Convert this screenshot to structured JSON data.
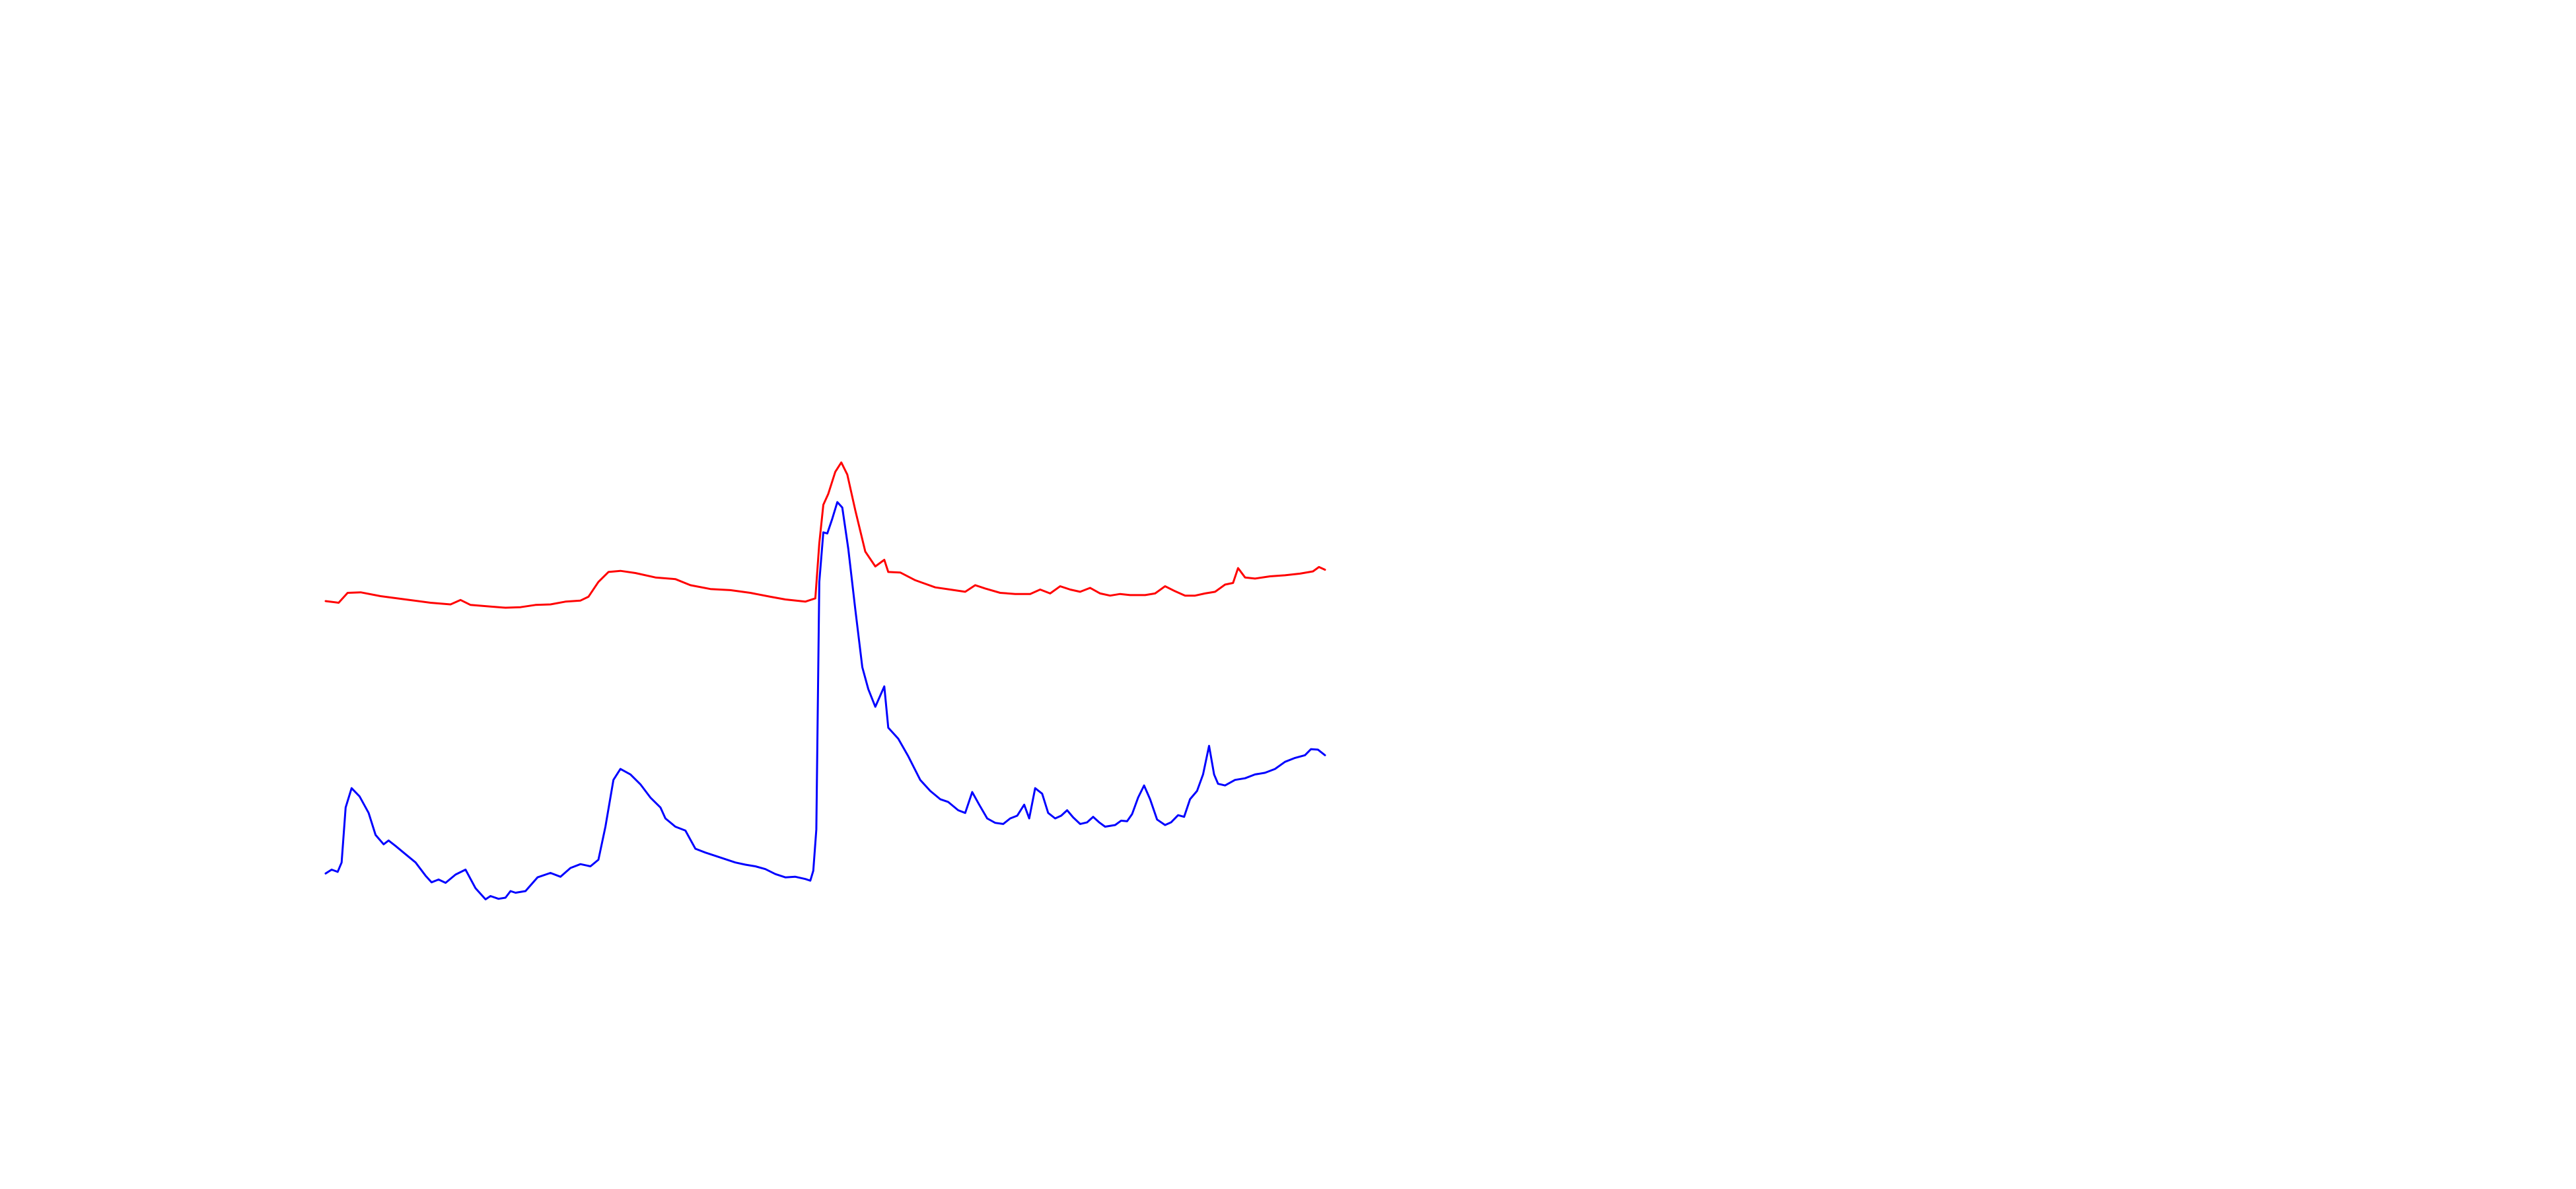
{
  "chart_data": {
    "type": "line",
    "title": "",
    "xlabel": "",
    "ylabel": "",
    "axes_visible": false,
    "grid": false,
    "legend": "none",
    "xlim": [
      0,
      100
    ],
    "ylim": [
      0,
      100
    ],
    "series": [
      {
        "color": "#ff0000",
        "points": [
          [
            0.0,
            54.5
          ],
          [
            1.3,
            54.2
          ],
          [
            2.2,
            56.0
          ],
          [
            3.5,
            56.1
          ],
          [
            5.5,
            55.4
          ],
          [
            8.0,
            54.8
          ],
          [
            10.5,
            54.2
          ],
          [
            12.5,
            53.9
          ],
          [
            13.5,
            54.7
          ],
          [
            14.5,
            53.8
          ],
          [
            16.5,
            53.5
          ],
          [
            18.0,
            53.3
          ],
          [
            19.5,
            53.4
          ],
          [
            21.0,
            53.8
          ],
          [
            22.5,
            53.9
          ],
          [
            24.0,
            54.4
          ],
          [
            25.5,
            54.6
          ],
          [
            26.3,
            55.3
          ],
          [
            27.3,
            58.0
          ],
          [
            28.3,
            59.8
          ],
          [
            29.5,
            60.0
          ],
          [
            31.0,
            59.6
          ],
          [
            33.0,
            58.8
          ],
          [
            35.0,
            58.5
          ],
          [
            36.5,
            57.4
          ],
          [
            38.5,
            56.7
          ],
          [
            40.5,
            56.5
          ],
          [
            42.5,
            56.0
          ],
          [
            44.5,
            55.3
          ],
          [
            46.0,
            54.8
          ],
          [
            48.0,
            54.4
          ],
          [
            49.0,
            55.0
          ],
          [
            49.4,
            65.0
          ],
          [
            49.8,
            72.0
          ],
          [
            50.3,
            74.0
          ],
          [
            51.0,
            78.0
          ],
          [
            51.6,
            79.7
          ],
          [
            52.2,
            77.5
          ],
          [
            53.0,
            71.0
          ],
          [
            54.0,
            63.5
          ],
          [
            55.0,
            60.8
          ],
          [
            55.9,
            62.0
          ],
          [
            56.3,
            59.8
          ],
          [
            57.5,
            59.7
          ],
          [
            59.0,
            58.3
          ],
          [
            61.0,
            57.0
          ],
          [
            62.5,
            56.6
          ],
          [
            64.0,
            56.2
          ],
          [
            65.0,
            57.4
          ],
          [
            66.0,
            56.8
          ],
          [
            67.5,
            56.0
          ],
          [
            69.0,
            55.8
          ],
          [
            70.5,
            55.8
          ],
          [
            71.5,
            56.6
          ],
          [
            72.5,
            55.9
          ],
          [
            73.5,
            57.2
          ],
          [
            74.5,
            56.6
          ],
          [
            75.5,
            56.2
          ],
          [
            76.5,
            56.9
          ],
          [
            77.5,
            55.9
          ],
          [
            78.5,
            55.5
          ],
          [
            79.5,
            55.8
          ],
          [
            80.5,
            55.6
          ],
          [
            82.0,
            55.6
          ],
          [
            83.0,
            55.9
          ],
          [
            84.0,
            57.2
          ],
          [
            85.0,
            56.3
          ],
          [
            86.0,
            55.5
          ],
          [
            87.0,
            55.5
          ],
          [
            88.0,
            55.9
          ],
          [
            89.0,
            56.2
          ],
          [
            90.0,
            57.5
          ],
          [
            90.8,
            57.8
          ],
          [
            91.3,
            60.5
          ],
          [
            92.0,
            58.8
          ],
          [
            93.0,
            58.6
          ],
          [
            94.5,
            59.0
          ],
          [
            96.0,
            59.2
          ],
          [
            97.5,
            59.5
          ],
          [
            98.8,
            59.9
          ],
          [
            99.4,
            60.7
          ],
          [
            100.0,
            60.2
          ]
        ]
      },
      {
        "color": "#0000ff",
        "points": [
          [
            0.0,
            5.0
          ],
          [
            0.6,
            5.7
          ],
          [
            1.2,
            5.3
          ],
          [
            1.6,
            7.0
          ],
          [
            2.0,
            17.0
          ],
          [
            2.6,
            20.5
          ],
          [
            3.4,
            19.0
          ],
          [
            4.3,
            16.0
          ],
          [
            5.0,
            12.0
          ],
          [
            5.8,
            10.3
          ],
          [
            6.3,
            11.0
          ],
          [
            7.0,
            10.0
          ],
          [
            8.0,
            8.5
          ],
          [
            9.0,
            7.0
          ],
          [
            10.0,
            4.6
          ],
          [
            10.6,
            3.4
          ],
          [
            11.3,
            3.9
          ],
          [
            12.0,
            3.3
          ],
          [
            13.0,
            4.8
          ],
          [
            14.0,
            5.7
          ],
          [
            15.0,
            2.3
          ],
          [
            16.0,
            0.3
          ],
          [
            16.5,
            0.9
          ],
          [
            17.3,
            0.4
          ],
          [
            18.0,
            0.6
          ],
          [
            18.5,
            1.8
          ],
          [
            19.0,
            1.5
          ],
          [
            20.0,
            1.8
          ],
          [
            21.2,
            4.3
          ],
          [
            22.5,
            5.1
          ],
          [
            23.5,
            4.4
          ],
          [
            24.5,
            6.0
          ],
          [
            25.5,
            6.7
          ],
          [
            26.5,
            6.3
          ],
          [
            27.3,
            7.5
          ],
          [
            28.0,
            13.5
          ],
          [
            28.8,
            22.0
          ],
          [
            29.5,
            24.0
          ],
          [
            30.5,
            23.0
          ],
          [
            31.5,
            21.2
          ],
          [
            32.5,
            18.8
          ],
          [
            33.5,
            17.0
          ],
          [
            34.0,
            15.0
          ],
          [
            35.0,
            13.5
          ],
          [
            36.0,
            12.8
          ],
          [
            37.0,
            9.5
          ],
          [
            38.0,
            8.8
          ],
          [
            39.0,
            8.2
          ],
          [
            40.0,
            7.6
          ],
          [
            41.0,
            7.0
          ],
          [
            42.0,
            6.6
          ],
          [
            43.0,
            6.3
          ],
          [
            44.0,
            5.8
          ],
          [
            45.0,
            4.9
          ],
          [
            46.0,
            4.3
          ],
          [
            47.0,
            4.4
          ],
          [
            48.0,
            4.0
          ],
          [
            48.5,
            3.7
          ],
          [
            48.8,
            5.5
          ],
          [
            49.1,
            13.0
          ],
          [
            49.4,
            58.0
          ],
          [
            49.8,
            67.0
          ],
          [
            50.2,
            66.8
          ],
          [
            50.7,
            69.5
          ],
          [
            51.2,
            72.5
          ],
          [
            51.7,
            71.5
          ],
          [
            52.3,
            64.0
          ],
          [
            53.0,
            53.0
          ],
          [
            53.7,
            42.5
          ],
          [
            54.3,
            38.5
          ],
          [
            55.0,
            35.3
          ],
          [
            55.9,
            39.0
          ],
          [
            56.3,
            31.5
          ],
          [
            57.3,
            29.5
          ],
          [
            58.3,
            26.3
          ],
          [
            59.5,
            22.0
          ],
          [
            60.5,
            20.0
          ],
          [
            61.5,
            18.5
          ],
          [
            62.3,
            18.0
          ],
          [
            63.3,
            16.5
          ],
          [
            64.0,
            16.0
          ],
          [
            64.7,
            19.8
          ],
          [
            65.4,
            17.5
          ],
          [
            66.2,
            15.0
          ],
          [
            67.0,
            14.2
          ],
          [
            67.8,
            14.0
          ],
          [
            68.5,
            15.0
          ],
          [
            69.2,
            15.5
          ],
          [
            69.9,
            17.5
          ],
          [
            70.4,
            15.0
          ],
          [
            71.0,
            20.5
          ],
          [
            71.7,
            19.5
          ],
          [
            72.3,
            16.0
          ],
          [
            73.0,
            15.0
          ],
          [
            73.6,
            15.5
          ],
          [
            74.2,
            16.5
          ],
          [
            74.8,
            15.2
          ],
          [
            75.5,
            14.0
          ],
          [
            76.2,
            14.3
          ],
          [
            76.8,
            15.3
          ],
          [
            77.4,
            14.3
          ],
          [
            78.0,
            13.5
          ],
          [
            79.0,
            13.8
          ],
          [
            79.6,
            14.6
          ],
          [
            80.2,
            14.5
          ],
          [
            80.7,
            15.8
          ],
          [
            81.3,
            18.8
          ],
          [
            81.9,
            21.0
          ],
          [
            82.5,
            18.5
          ],
          [
            83.2,
            14.8
          ],
          [
            84.0,
            13.8
          ],
          [
            84.6,
            14.3
          ],
          [
            85.3,
            15.6
          ],
          [
            85.9,
            15.3
          ],
          [
            86.5,
            18.5
          ],
          [
            87.2,
            20.0
          ],
          [
            87.8,
            23.0
          ],
          [
            88.4,
            28.2
          ],
          [
            88.9,
            23.0
          ],
          [
            89.3,
            21.3
          ],
          [
            90.0,
            21.0
          ],
          [
            91.0,
            22.0
          ],
          [
            92.0,
            22.3
          ],
          [
            93.0,
            23.0
          ],
          [
            94.0,
            23.3
          ],
          [
            95.0,
            24.0
          ],
          [
            96.0,
            25.3
          ],
          [
            97.0,
            26.0
          ],
          [
            98.0,
            26.5
          ],
          [
            98.6,
            27.6
          ],
          [
            99.3,
            27.5
          ],
          [
            100.0,
            26.5
          ]
        ]
      }
    ]
  }
}
